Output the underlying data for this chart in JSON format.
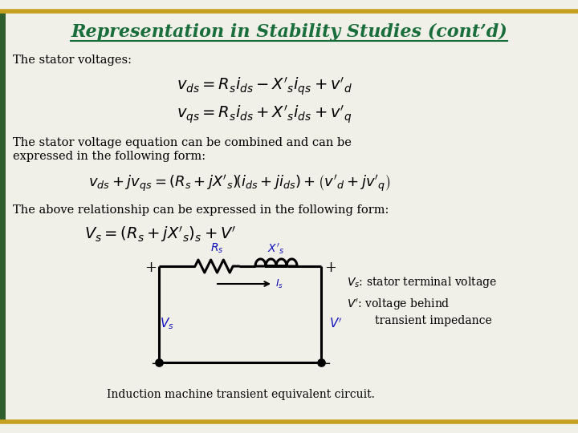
{
  "title": "Representation in Stability Studies (cont’d)",
  "title_color": "#1a6e3c",
  "bg_color": "#f0efe8",
  "border_color": "#c8a020",
  "green_bar_color": "#2e5e2e",
  "text_color": "#000000",
  "blue_color": "#1111bb",
  "body_fontsize": 10.5,
  "para1": "The stator voltages:",
  "para2a": "The stator voltage equation can be combined and can be",
  "para2b": "expressed in the following form:",
  "para3": "The above relationship can be expressed in the following form:",
  "caption": "Induction machine transient equivalent circuit.",
  "leg1": "$V_s$: stator terminal voltage",
  "leg2": "$V'$: voltage behind",
  "leg3": "         transient impedance"
}
